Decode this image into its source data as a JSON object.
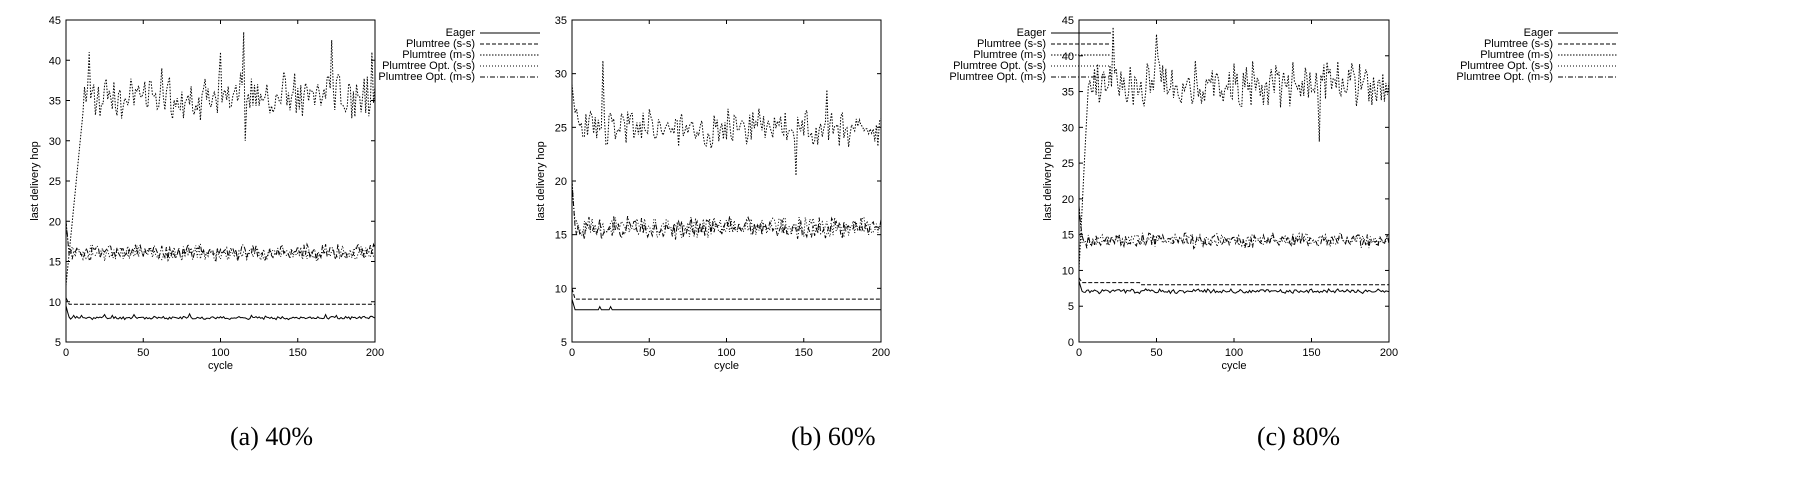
{
  "chart_data": [
    {
      "type": "line",
      "caption": "(a) 40%",
      "xlabel": "cycle",
      "ylabel": "last delivery hop",
      "xlim": [
        0,
        200
      ],
      "ylim": [
        5,
        45
      ],
      "xticks": [
        "0",
        "50",
        "100",
        "150",
        "200"
      ],
      "yticks": [
        "5",
        "10",
        "15",
        "20",
        "25",
        "30",
        "35",
        "40",
        "45"
      ],
      "legend_position": "outside-top-right",
      "series": [
        {
          "name": "Eager",
          "style": "solid",
          "start": 9.5,
          "level": 8.0,
          "noise": 0.15,
          "seed": 11,
          "spikes": [
            [
              5,
              8.3
            ],
            [
              10,
              8.3
            ],
            [
              25,
              8.4
            ],
            [
              30,
              8.3
            ],
            [
              44,
              8.4
            ],
            [
              80,
              8.5
            ],
            [
              120,
              8.3
            ],
            [
              168,
              8.4
            ],
            [
              175,
              8.3
            ]
          ]
        },
        {
          "name": "Plumtree (s-s)",
          "style": "dashed",
          "start": 10.5,
          "level": 9.7,
          "noise": 0,
          "seed": 12,
          "spikes": []
        },
        {
          "name": "Plumtree (m-s)",
          "style": "dotted",
          "start": 12,
          "level": 35.5,
          "noise": 2.2,
          "seed": 13,
          "rise": 12,
          "spikes": [
            [
              15,
              41
            ],
            [
              62,
              39
            ],
            [
              100,
              41
            ],
            [
              115,
              43.5
            ],
            [
              116,
              30
            ],
            [
              172,
              42.5
            ],
            [
              198,
              41
            ]
          ]
        },
        {
          "name": "Plumtree Opt. (s-s)",
          "style": "dotted2",
          "start": 20,
          "level": 16.0,
          "noise": 0.7,
          "seed": 14,
          "spikes": []
        },
        {
          "name": "Plumtree Opt. (m-s)",
          "style": "dashdot",
          "start": 20,
          "level": 16.2,
          "noise": 0.8,
          "seed": 15,
          "spikes": []
        }
      ]
    },
    {
      "type": "line",
      "caption": "(b) 60%",
      "xlabel": "cycle",
      "ylabel": "last delivery hop",
      "xlim": [
        0,
        200
      ],
      "ylim": [
        5,
        35
      ],
      "xticks": [
        "0",
        "50",
        "100",
        "150",
        "200"
      ],
      "yticks": [
        "5",
        "10",
        "15",
        "20",
        "25",
        "30",
        "35"
      ],
      "legend_position": "outside-top-right",
      "series": [
        {
          "name": "Eager",
          "style": "solid",
          "start": 9.0,
          "level": 8.0,
          "noise": 0,
          "seed": 21,
          "spikes": [
            [
              18,
              8.3
            ],
            [
              25,
              8.3
            ]
          ]
        },
        {
          "name": "Plumtree (s-s)",
          "style": "dashed",
          "start": 10,
          "level": 9.0,
          "noise": 0,
          "seed": 22,
          "spikes": []
        },
        {
          "name": "Plumtree (m-s)",
          "style": "dotted",
          "start": 29,
          "level": 25.0,
          "noise": 1.4,
          "seed": 23,
          "rise": 3,
          "spikes": [
            [
              20,
              31.2
            ],
            [
              145,
              20.5
            ],
            [
              165,
              28.5
            ]
          ]
        },
        {
          "name": "Plumtree Opt. (s-s)",
          "style": "dotted2",
          "start": 20,
          "level": 15.7,
          "noise": 0.7,
          "seed": 24,
          "spikes": []
        },
        {
          "name": "Plumtree Opt. (m-s)",
          "style": "dashdot",
          "start": 20,
          "level": 15.6,
          "noise": 0.8,
          "seed": 25,
          "spikes": []
        }
      ]
    },
    {
      "type": "line",
      "caption": "(c) 80%",
      "xlabel": "cycle",
      "ylabel": "last delivery hop",
      "xlim": [
        0,
        200
      ],
      "ylim": [
        0,
        45
      ],
      "xticks": [
        "0",
        "50",
        "100",
        "150",
        "200"
      ],
      "yticks": [
        "0",
        "5",
        "10",
        "15",
        "20",
        "25",
        "30",
        "35",
        "40",
        "45"
      ],
      "legend_position": "outside-top-right",
      "series": [
        {
          "name": "Eager",
          "style": "solid",
          "start": 8.5,
          "level": 7.1,
          "noise": 0.25,
          "seed": 31,
          "spikes": []
        },
        {
          "name": "Plumtree (s-s)",
          "style": "dashed",
          "start": 9,
          "level": 8.3,
          "noise": 0,
          "seed": 32,
          "step": [
            40,
            8.0
          ]
        },
        {
          "name": "Plumtree (m-s)",
          "style": "dotted",
          "start": 10,
          "level": 36.0,
          "noise": 2.6,
          "seed": 33,
          "rise": 6,
          "spikes": [
            [
              22,
              44
            ],
            [
              50,
              43
            ],
            [
              155,
              28
            ]
          ]
        },
        {
          "name": "Plumtree Opt. (s-s)",
          "style": "dotted2",
          "start": 19,
          "level": 14.3,
          "noise": 0.7,
          "seed": 34,
          "spikes": []
        },
        {
          "name": "Plumtree Opt. (m-s)",
          "style": "dashdot",
          "start": 19,
          "level": 14.2,
          "noise": 0.8,
          "seed": 35,
          "spikes": []
        }
      ]
    }
  ]
}
